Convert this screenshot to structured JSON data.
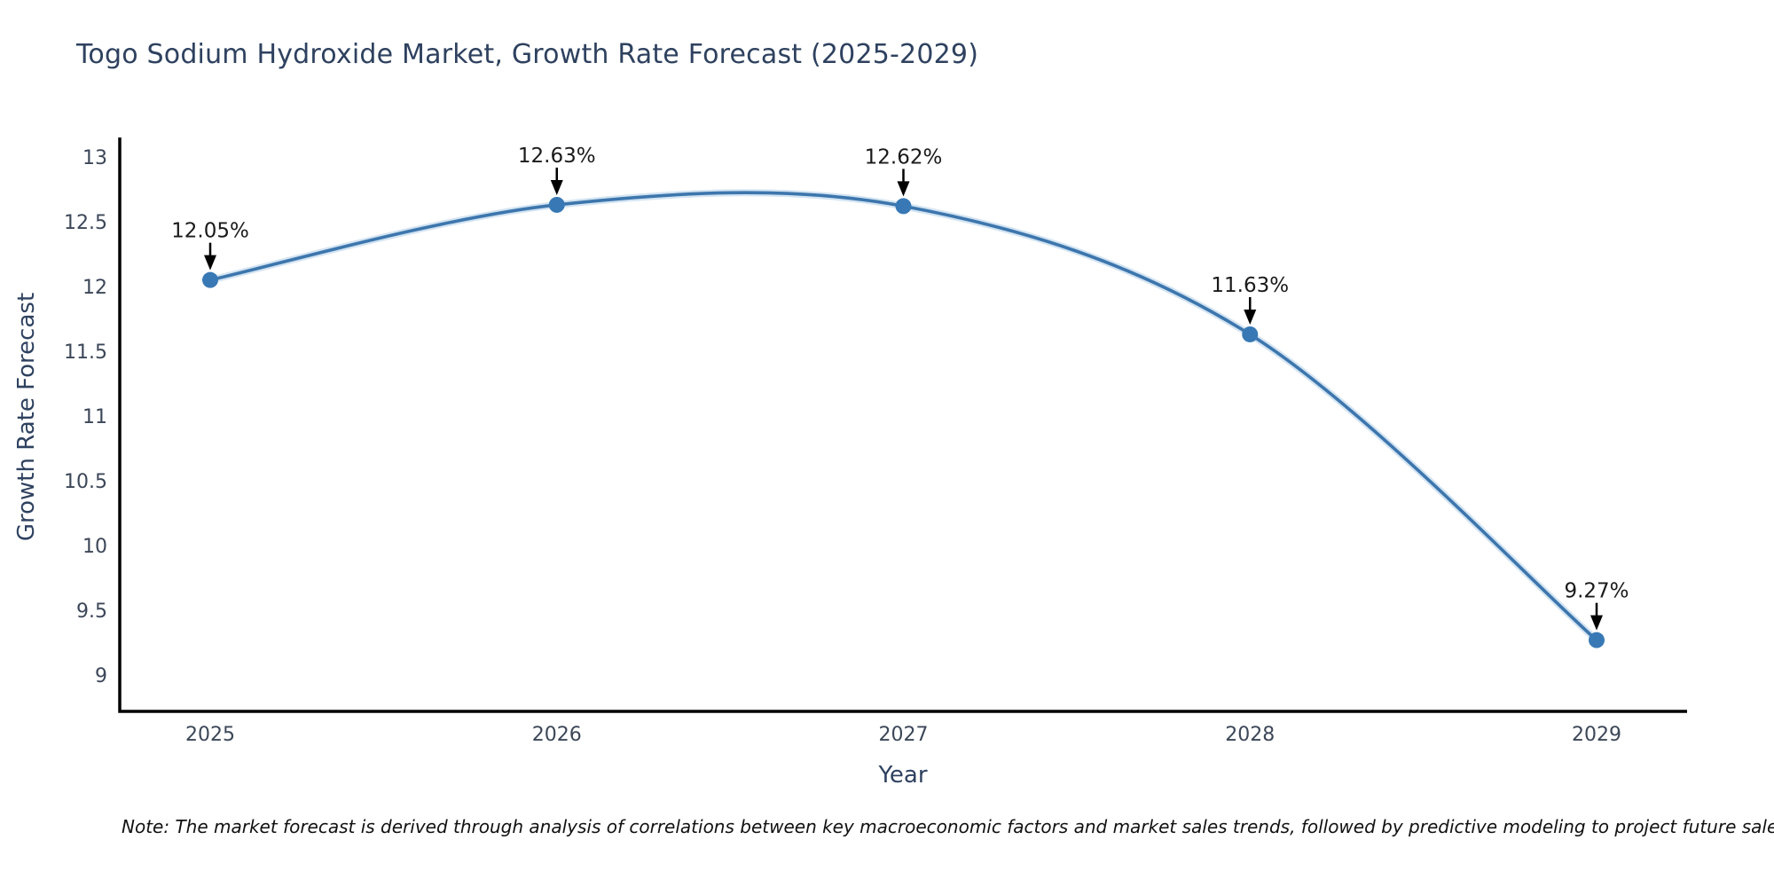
{
  "note": {
    "text": "Note: The market forecast is derived through analysis of correlations between key macroeconomic factors and market sales trends, followed by predictive modeling to project future sales"
  },
  "chart_data": {
    "type": "line",
    "curve": "spline",
    "title": "Togo Sodium Hydroxide Market, Growth Rate Forecast (2025-2029)",
    "xlabel": "Year",
    "ylabel": "Growth Rate Forecast",
    "x": [
      2025,
      2026,
      2027,
      2028,
      2029
    ],
    "xtick_labels": [
      "2025",
      "2026",
      "2027",
      "2028",
      "2029"
    ],
    "series": [
      {
        "name": "Growth Rate Forecast",
        "values": [
          12.05,
          12.63,
          12.62,
          11.63,
          9.27
        ],
        "point_labels": [
          "12.05%",
          "12.63%",
          "12.62%",
          "11.63%",
          "9.27%"
        ]
      }
    ],
    "yticks": [
      9,
      9.5,
      10,
      10.5,
      11,
      11.5,
      12,
      12.5,
      13
    ],
    "ytick_labels": [
      "9",
      "9.5",
      "10",
      "10.5",
      "11",
      "11.5",
      "12",
      "12.5",
      "13"
    ],
    "ylim": [
      8.72,
      13.15
    ],
    "grid": false,
    "legend_position": "none",
    "annotations_have_arrows": true,
    "colors": {
      "line": "#3d76ad",
      "line_halo": "#aecde8",
      "marker": "#3879b5",
      "axis": "#000000",
      "tick_label": "#3c4758",
      "title": "#2e415f",
      "annotation": "#1a1a1a",
      "arrow": "#000000",
      "background": "#ffffff"
    }
  }
}
